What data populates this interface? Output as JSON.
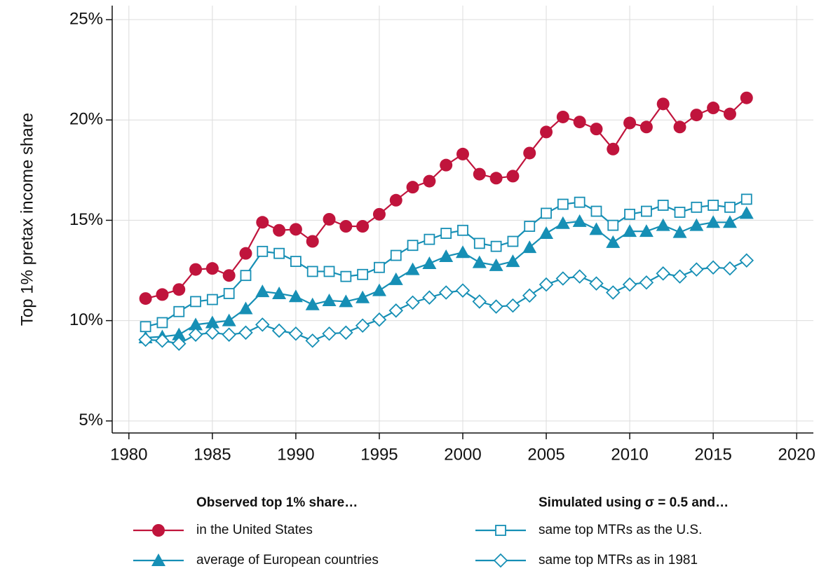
{
  "chart_data": {
    "type": "line",
    "y_label": "Top 1% pretax income share",
    "x": [
      1981,
      1982,
      1983,
      1984,
      1985,
      1986,
      1987,
      1988,
      1989,
      1990,
      1991,
      1992,
      1993,
      1994,
      1995,
      1996,
      1997,
      1998,
      1999,
      2000,
      2001,
      2002,
      2003,
      2004,
      2005,
      2006,
      2007,
      2008,
      2009,
      2010,
      2011,
      2012,
      2013,
      2014,
      2015,
      2016,
      2017
    ],
    "xlim": [
      1979,
      2021
    ],
    "xticks": [
      1980,
      1985,
      1990,
      1995,
      2000,
      2005,
      2010,
      2015,
      2020
    ],
    "ylim": [
      4.4,
      25.7
    ],
    "yticks": [
      {
        "value": 5,
        "label": "5%"
      },
      {
        "value": 10,
        "label": "10%"
      },
      {
        "value": 15,
        "label": "15%"
      },
      {
        "value": 20,
        "label": "20%"
      },
      {
        "value": 25,
        "label": "25%"
      }
    ],
    "grid": true,
    "legend_titles": [
      "Observed top 1% share…",
      "Simulated using σ = 0.5 and…"
    ],
    "series": [
      {
        "name": "in the United States",
        "color": "#c0143c",
        "marker": "circle",
        "values": [
          11.1,
          11.3,
          11.55,
          12.55,
          12.6,
          12.25,
          13.35,
          14.9,
          14.5,
          14.55,
          13.95,
          15.05,
          14.7,
          14.7,
          15.3,
          16.0,
          16.65,
          16.95,
          17.75,
          18.3,
          17.3,
          17.1,
          17.2,
          18.35,
          19.4,
          20.15,
          19.9,
          19.55,
          18.55,
          19.85,
          19.65,
          20.8,
          19.65,
          20.25,
          20.6,
          20.3,
          21.1
        ]
      },
      {
        "name": "average of European countries",
        "color": "#168fb5",
        "marker": "triangle",
        "values": [
          9.15,
          9.2,
          9.3,
          9.8,
          9.9,
          10.0,
          10.6,
          11.45,
          11.35,
          11.2,
          10.8,
          11.0,
          10.95,
          11.15,
          11.5,
          12.05,
          12.55,
          12.85,
          13.2,
          13.4,
          12.9,
          12.75,
          12.95,
          13.65,
          14.35,
          14.85,
          14.95,
          14.55,
          13.9,
          14.45,
          14.45,
          14.75,
          14.4,
          14.75,
          14.9,
          14.9,
          15.35
        ]
      },
      {
        "name": "same top MTRs as the U.S.",
        "color": "#168fb5",
        "marker": "square-open",
        "values": [
          9.7,
          9.9,
          10.45,
          10.95,
          11.05,
          11.35,
          12.25,
          13.45,
          13.35,
          12.95,
          12.45,
          12.45,
          12.2,
          12.3,
          12.65,
          13.25,
          13.75,
          14.05,
          14.35,
          14.5,
          13.85,
          13.7,
          13.95,
          14.7,
          15.35,
          15.8,
          15.9,
          15.45,
          14.75,
          15.3,
          15.45,
          15.75,
          15.4,
          15.65,
          15.75,
          15.65,
          16.05
        ]
      },
      {
        "name": "same top MTRs as in 1981",
        "color": "#168fb5",
        "marker": "diamond-open",
        "values": [
          9.05,
          9.0,
          8.85,
          9.3,
          9.4,
          9.3,
          9.4,
          9.8,
          9.5,
          9.35,
          9.0,
          9.35,
          9.4,
          9.75,
          10.05,
          10.5,
          10.9,
          11.15,
          11.4,
          11.5,
          10.95,
          10.7,
          10.75,
          11.25,
          11.8,
          12.1,
          12.2,
          11.85,
          11.4,
          11.8,
          11.9,
          12.35,
          12.2,
          12.55,
          12.65,
          12.6,
          13.0
        ]
      }
    ]
  }
}
